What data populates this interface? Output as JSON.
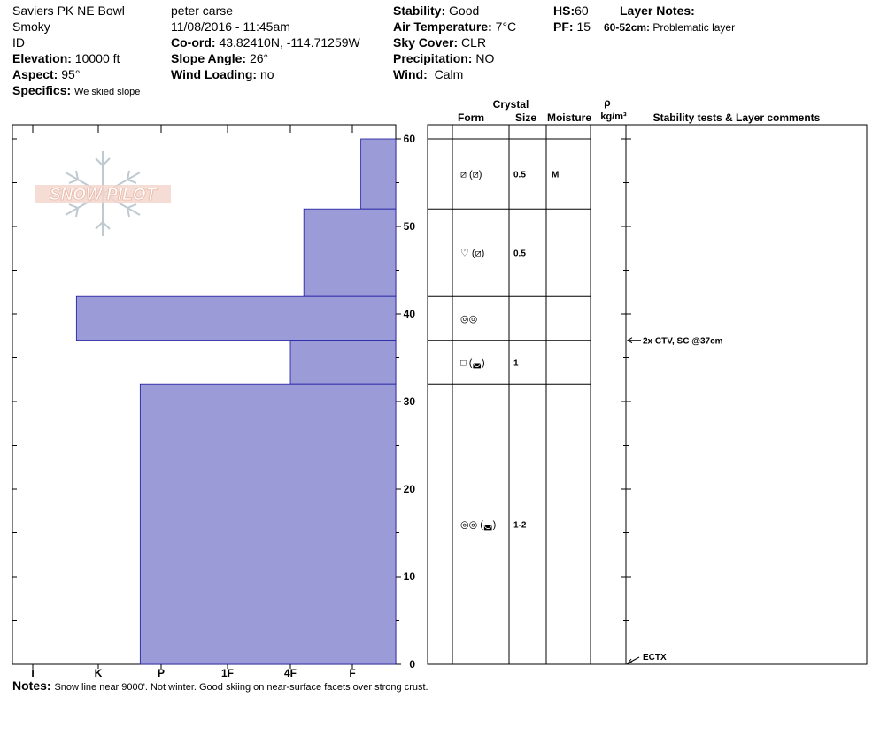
{
  "header": {
    "location": "Saviers PK NE Bowl",
    "region": "Smoky",
    "state": "ID",
    "elevation_label": "Elevation:",
    "elevation": "10000 ft",
    "aspect_label": "Aspect:",
    "aspect": "95°",
    "specifics_label": "Specifics:",
    "specifics": "We skied slope",
    "observer": "peter carse",
    "datetime": "11/08/2016 - 11:45am",
    "coord_label": "Co-ord:",
    "coord": "43.82410N, -114.71259W",
    "slope_label": "Slope Angle:",
    "slope": "26°",
    "windload_label": "Wind Loading:",
    "windload": "no",
    "stability_label": "Stability:",
    "stability": "Good",
    "airtemp_label": "Air Temperature:",
    "airtemp": "7°C",
    "sky_label": "Sky Cover:",
    "sky": "CLR",
    "precip_label": "Precipitation:",
    "precip": "NO",
    "wind_label": "Wind:",
    "wind": "Calm",
    "hs_label": "HS:",
    "hs": "60",
    "pf_label": "PF:",
    "pf": "15",
    "layer_notes_label": "Layer Notes:",
    "layer_note_range": "60-52cm:",
    "layer_note_text": "Problematic layer"
  },
  "logo": {
    "text": "SNOW PILOT"
  },
  "notes": {
    "label": "Notes:",
    "text": "Snow line near 9000'. Not winter. Good skiing on near-surface facets over strong crust."
  },
  "columns": {
    "crystal": "Crystal",
    "form": "Form",
    "size": "Size",
    "moisture": "Moisture",
    "rho": "ρ",
    "density_unit": "kg/m³",
    "stability_comments": "Stability tests & Layer comments"
  },
  "colors": {
    "hardness_fill": "#9b9bd7",
    "hardness_stroke": "#1a1aa0",
    "logo": "#f0c8b8",
    "flake": "#b8c4cc"
  },
  "chart_data": {
    "type": "bar",
    "title": "",
    "hardness_scale": [
      "I",
      "K",
      "P",
      "1F",
      "4F",
      "F"
    ],
    "hardness_scale_order": "right-to-left from F (softest) to I (hardest)",
    "y_axis": {
      "ticks": [
        0,
        10,
        20,
        30,
        40,
        50,
        60
      ],
      "ylim": [
        0,
        60
      ],
      "unit": "cm"
    },
    "hardness_layers": [
      {
        "top": 60,
        "bottom": 52,
        "hardness": "F-"
      },
      {
        "top": 52,
        "bottom": 42,
        "hardness": "4F-"
      },
      {
        "top": 42,
        "bottom": 37,
        "hardness": "K+"
      },
      {
        "top": 37,
        "bottom": 32,
        "hardness": "4F"
      },
      {
        "top": 32,
        "bottom": 0,
        "hardness": "P+"
      }
    ],
    "layer_details": [
      {
        "top": 60,
        "bottom": 52,
        "form": "⧄ (⧄)",
        "size": "0.5",
        "moisture": "M"
      },
      {
        "top": 52,
        "bottom": 42,
        "form": "♡ (⧄)",
        "size": "0.5",
        "moisture": ""
      },
      {
        "top": 42,
        "bottom": 37,
        "form": "◎◎",
        "size": "",
        "moisture": ""
      },
      {
        "top": 37,
        "bottom": 32,
        "form": "□ (◛)",
        "size": "1",
        "moisture": ""
      },
      {
        "top": 32,
        "bottom": 0,
        "form": "◎◎ (◛)",
        "size": "1-2",
        "moisture": ""
      }
    ],
    "stability_tests": [
      {
        "depth": 37,
        "text": "2x CTV, SC @37cm"
      },
      {
        "depth": 0,
        "text": "ECTX"
      }
    ]
  }
}
